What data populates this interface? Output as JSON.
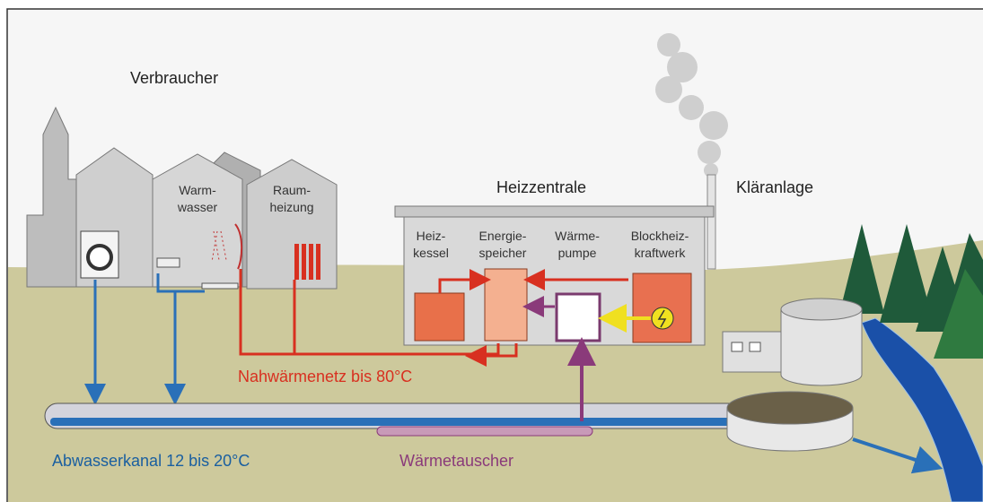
{
  "header": {
    "title": "Verbraucher"
  },
  "consumers": {
    "warmwasser": [
      "Warm-",
      "wasser"
    ],
    "raumheizung": [
      "Raum-",
      "heizung"
    ]
  },
  "plant": {
    "title": "Heizzentrale",
    "units": [
      [
        "Heiz-",
        "kessel"
      ],
      [
        "Energie-",
        "speicher"
      ],
      [
        "Wärme-",
        "pumpe"
      ],
      [
        "Blockheiz-",
        "kraftwerk"
      ]
    ]
  },
  "treatment": {
    "title": "Kläranlage"
  },
  "labels": {
    "network": "Nahwärmenetz bis 80°C",
    "sewer": "Abwasserkanal 12 bis 20°C",
    "exchanger": "Wärmetauscher"
  }
}
